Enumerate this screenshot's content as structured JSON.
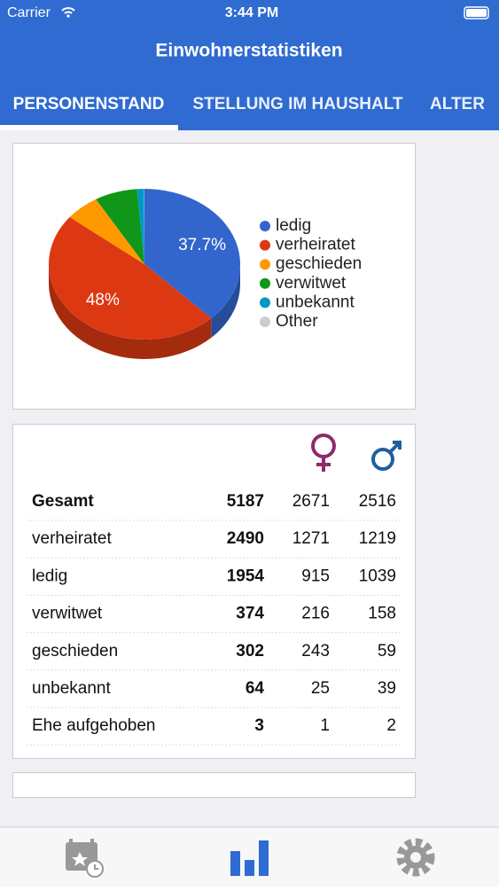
{
  "status_bar": {
    "carrier": "Carrier",
    "time": "3:44 PM"
  },
  "header": {
    "title": "Einwohnerstatistiken"
  },
  "tabs": [
    "PERSONENSTAND",
    "STELLUNG IM HAUSHALT",
    "ALTER"
  ],
  "chart_data": {
    "type": "pie",
    "categories": [
      "ledig",
      "verheiratet",
      "geschieden",
      "verwitwet",
      "unbekannt",
      "Other"
    ],
    "values": [
      37.7,
      48,
      5.8,
      7.2,
      1.2,
      0.06
    ],
    "value_labels": [
      "37.7%",
      "48%",
      null,
      null,
      null,
      null
    ],
    "colors": [
      "#3366cc",
      "#dc3912",
      "#ff9900",
      "#109618",
      "#0099c6",
      "#cccccc"
    ],
    "legend": "right"
  },
  "table": {
    "rows": [
      [
        "Gesamt",
        5187,
        2671,
        2516
      ],
      [
        "verheiratet",
        2490,
        1271,
        1219
      ],
      [
        "ledig",
        1954,
        915,
        1039
      ],
      [
        "verwitwet",
        374,
        216,
        158
      ],
      [
        "geschieden",
        302,
        243,
        59
      ],
      [
        "unbekannt",
        64,
        25,
        39
      ],
      [
        "Ehe aufgehoben",
        3,
        1,
        2
      ]
    ]
  }
}
